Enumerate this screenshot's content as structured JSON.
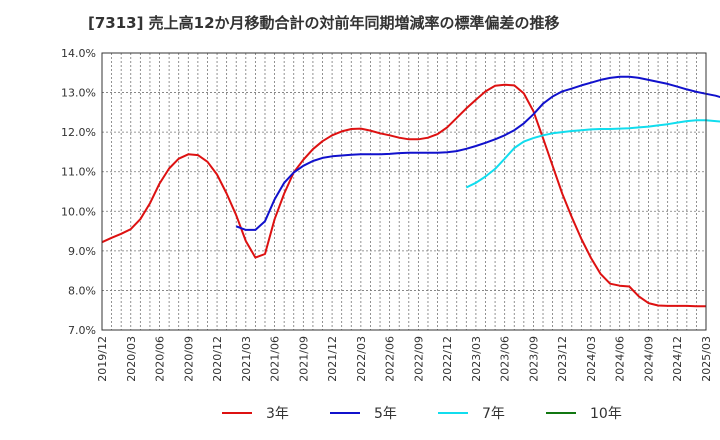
{
  "chart_data": {
    "type": "line",
    "title": "[7313]  売上高12か月移動合計の対前年同期増減率の標準偏差の推移",
    "xlabel": "",
    "ylabel": "",
    "ylim": [
      7.0,
      14.0
    ],
    "y_ticks": [
      7.0,
      8.0,
      9.0,
      10.0,
      11.0,
      12.0,
      13.0,
      14.0
    ],
    "y_tick_labels": [
      "7.0%",
      "8.0%",
      "9.0%",
      "10.0%",
      "11.0%",
      "12.0%",
      "13.0%",
      "14.0%"
    ],
    "x_tick_labels": [
      "2019/12",
      "2020/03",
      "2020/06",
      "2020/09",
      "2020/12",
      "2021/03",
      "2021/06",
      "2021/09",
      "2021/12",
      "2022/03",
      "2022/06",
      "2022/09",
      "2022/12",
      "2023/03",
      "2023/06",
      "2023/09",
      "2023/12",
      "2024/03",
      "2024/06",
      "2024/09",
      "2024/12",
      "2025/03"
    ],
    "grid": true,
    "legend_position": "bottom",
    "series": [
      {
        "name": "3年",
        "color": "#dd1111",
        "start": "2019/12",
        "values": [
          9.22,
          9.33,
          9.43,
          9.55,
          9.8,
          10.2,
          10.7,
          11.08,
          11.33,
          11.44,
          11.42,
          11.25,
          10.93,
          10.45,
          9.9,
          9.25,
          8.83,
          8.92,
          9.8,
          10.45,
          10.98,
          11.3,
          11.57,
          11.77,
          11.92,
          12.02,
          12.08,
          12.09,
          12.04,
          11.97,
          11.92,
          11.86,
          11.82,
          11.82,
          11.86,
          11.95,
          12.12,
          12.36,
          12.6,
          12.82,
          13.03,
          13.17,
          13.2,
          13.18,
          12.98,
          12.53,
          11.85,
          11.15,
          10.45,
          9.85,
          9.3,
          8.82,
          8.42,
          8.17,
          8.12,
          8.1,
          7.85,
          7.68,
          7.62,
          7.61,
          7.61,
          7.61,
          7.6,
          7.6
        ]
      },
      {
        "name": "5年",
        "color": "#1111cc",
        "start": "2021/02",
        "values": [
          9.62,
          9.53,
          9.53,
          9.75,
          10.3,
          10.72,
          10.98,
          11.15,
          11.27,
          11.35,
          11.39,
          11.41,
          11.43,
          11.44,
          11.44,
          11.44,
          11.45,
          11.47,
          11.48,
          11.48,
          11.48,
          11.48,
          11.49,
          11.52,
          11.58,
          11.65,
          11.73,
          11.82,
          11.92,
          12.05,
          12.22,
          12.45,
          12.72,
          12.9,
          13.03,
          13.1,
          13.18,
          13.25,
          13.32,
          13.37,
          13.4,
          13.4,
          13.37,
          13.32,
          13.27,
          13.22,
          13.15,
          13.08,
          13.02,
          12.97,
          12.92,
          12.85,
          12.73,
          12.62,
          12.5
        ]
      },
      {
        "name": "7年",
        "color": "#11ddee",
        "start": "2023/02",
        "values": [
          10.6,
          10.72,
          10.88,
          11.07,
          11.33,
          11.6,
          11.76,
          11.85,
          11.92,
          11.97,
          12.0,
          12.03,
          12.05,
          12.07,
          12.08,
          12.08,
          12.09,
          12.1,
          12.12,
          12.14,
          12.17,
          12.2,
          12.24,
          12.28,
          12.3,
          12.3,
          12.28,
          12.26
        ]
      },
      {
        "name": "10年",
        "color": "#117711",
        "start": "2025/03",
        "values": []
      }
    ]
  }
}
